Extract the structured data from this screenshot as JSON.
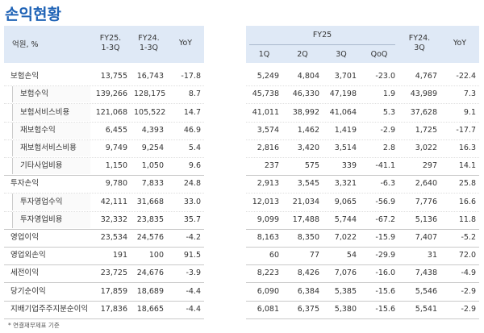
{
  "title": "손익현황",
  "left_header": {
    "unit": "억원, %",
    "columns": [
      [
        "FY25.",
        "1-3Q"
      ],
      [
        "FY24.",
        "1-3Q"
      ],
      [
        "YoY"
      ]
    ]
  },
  "right_header": {
    "group": "FY25",
    "group_columns": [
      "1Q",
      "2Q",
      "3Q",
      "QoQ"
    ],
    "columns": [
      [
        "FY24.",
        "3Q"
      ],
      [
        "YoY"
      ]
    ]
  },
  "rows": [
    {
      "label": "보험손익",
      "indent": false,
      "left": [
        "13,755",
        "16,743",
        "-17.8"
      ],
      "right": [
        "5,249",
        "4,804",
        "3,701",
        "-23.0",
        "4,767",
        "-22.4"
      ]
    },
    {
      "label": "보험수익",
      "indent": true,
      "left": [
        "139,266",
        "128,175",
        "8.7"
      ],
      "right": [
        "45,738",
        "46,330",
        "47,198",
        "1.9",
        "43,989",
        "7.3"
      ]
    },
    {
      "label": "보험서비스비용",
      "indent": true,
      "left": [
        "121,068",
        "105,522",
        "14.7"
      ],
      "right": [
        "41,011",
        "38,992",
        "41,064",
        "5.3",
        "37,628",
        "9.1"
      ]
    },
    {
      "label": "재보험수익",
      "indent": true,
      "left": [
        "6,455",
        "4,393",
        "46.9"
      ],
      "right": [
        "3,574",
        "1,462",
        "1,419",
        "-2.9",
        "1,725",
        "-17.7"
      ]
    },
    {
      "label": "재보험서비스비용",
      "indent": true,
      "left": [
        "9,749",
        "9,254",
        "5.4"
      ],
      "right": [
        "2,816",
        "3,420",
        "3,514",
        "2.8",
        "3,022",
        "16.3"
      ]
    },
    {
      "label": "기타사업비용",
      "indent": true,
      "left": [
        "1,150",
        "1,050",
        "9.6"
      ],
      "right": [
        "237",
        "575",
        "339",
        "-41.1",
        "297",
        "14.1"
      ]
    },
    {
      "label": "투자손익",
      "indent": false,
      "left": [
        "9,780",
        "7,833",
        "24.8"
      ],
      "right": [
        "2,913",
        "3,545",
        "3,321",
        "-6.3",
        "2,640",
        "25.8"
      ]
    },
    {
      "label": "투자영업수익",
      "indent": true,
      "left": [
        "42,111",
        "31,668",
        "33.0"
      ],
      "right": [
        "12,013",
        "21,034",
        "9,065",
        "-56.9",
        "7,776",
        "16.6"
      ]
    },
    {
      "label": "투자영업비용",
      "indent": true,
      "left": [
        "32,332",
        "23,835",
        "35.7"
      ],
      "right": [
        "9,099",
        "17,488",
        "5,744",
        "-67.2",
        "5,136",
        "11.8"
      ]
    },
    {
      "label": "영업이익",
      "indent": false,
      "left": [
        "23,534",
        "24,576",
        "-4.2"
      ],
      "right": [
        "8,163",
        "8,350",
        "7,022",
        "-15.9",
        "7,407",
        "-5.2"
      ]
    },
    {
      "label": "영업외손익",
      "indent": false,
      "left": [
        "191",
        "100",
        "91.5"
      ],
      "right": [
        "60",
        "77",
        "54",
        "-29.9",
        "31",
        "72.0"
      ]
    },
    {
      "label": "세전이익",
      "indent": false,
      "left": [
        "23,725",
        "24,676",
        "-3.9"
      ],
      "right": [
        "8,223",
        "8,426",
        "7,076",
        "-16.0",
        "7,438",
        "-4.9"
      ]
    },
    {
      "label": "당기순이익",
      "indent": false,
      "left": [
        "17,859",
        "18,689",
        "-4.4"
      ],
      "right": [
        "6,090",
        "6,384",
        "5,385",
        "-15.6",
        "5,546",
        "-2.9"
      ]
    },
    {
      "label": "지배기업주주지분순이익",
      "indent": false,
      "left": [
        "17,836",
        "18,665",
        "-4.4"
      ],
      "right": [
        "6,081",
        "6,375",
        "5,380",
        "-15.6",
        "5,541",
        "-2.9"
      ]
    }
  ],
  "footnote": "* 연결재무제표 기준"
}
